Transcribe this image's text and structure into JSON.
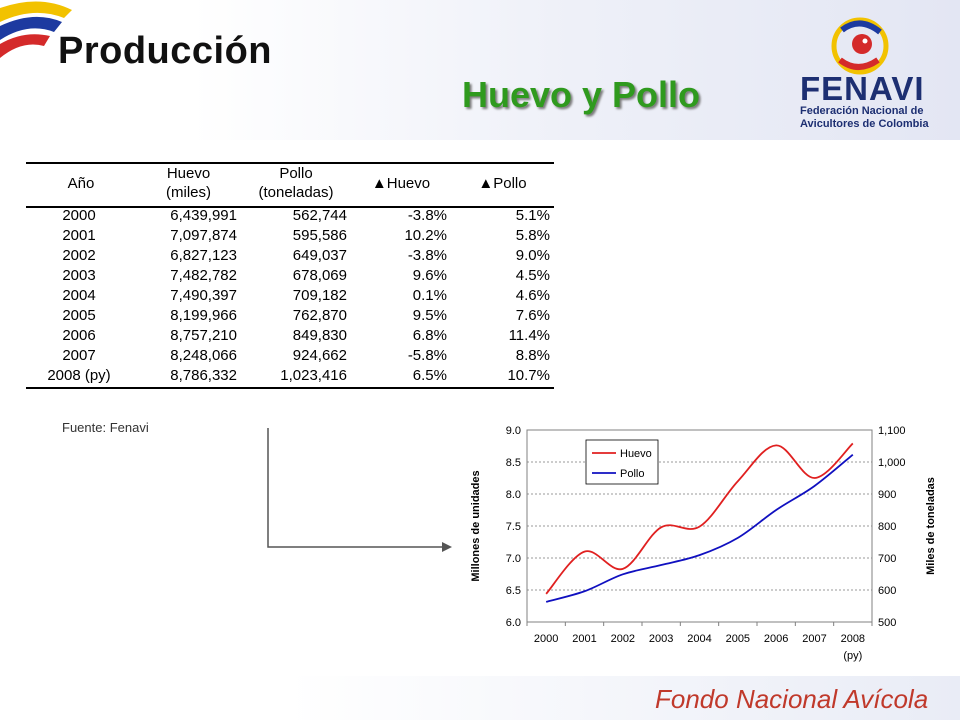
{
  "header": {
    "title": "Producción",
    "subtitle": "Huevo y Pollo"
  },
  "logo": {
    "name": "FENAVI",
    "line1": "Federación Nacional de",
    "line2": "Avicultores de Colombia"
  },
  "table": {
    "headers": [
      "Año",
      "Huevo\n(miles)",
      "Pollo\n(toneladas)",
      "▲Huevo",
      "▲Pollo"
    ],
    "rows": [
      [
        "2000",
        "6,439,991",
        "562,744",
        "-3.8%",
        "5.1%"
      ],
      [
        "2001",
        "7,097,874",
        "595,586",
        "10.2%",
        "5.8%"
      ],
      [
        "2002",
        "6,827,123",
        "649,037",
        "-3.8%",
        "9.0%"
      ],
      [
        "2003",
        "7,482,782",
        "678,069",
        "9.6%",
        "4.5%"
      ],
      [
        "2004",
        "7,490,397",
        "709,182",
        "0.1%",
        "4.6%"
      ],
      [
        "2005",
        "8,199,966",
        "762,870",
        "9.5%",
        "7.6%"
      ],
      [
        "2006",
        "8,757,210",
        "849,830",
        "6.8%",
        "11.4%"
      ],
      [
        "2007",
        "8,248,066",
        "924,662",
        "-5.8%",
        "8.8%"
      ],
      [
        "2008 (py)",
        "8,786,332",
        "1,023,416",
        "6.5%",
        "10.7%"
      ]
    ]
  },
  "source": "Fuente: Fenavi",
  "footer": "Fondo Nacional Avícola",
  "colors": {
    "huevo": "#e02020",
    "pollo": "#1010c0",
    "subtitle": "#2f9a1e",
    "logo": "#1d2f72"
  },
  "chart_data": {
    "type": "line",
    "x": [
      "2000",
      "2001",
      "2002",
      "2003",
      "2004",
      "2005",
      "2006",
      "2007",
      "2008"
    ],
    "x_tick_note": "(py)",
    "series": [
      {
        "name": "Huevo",
        "axis": "left",
        "values": [
          6.44,
          7.1,
          6.83,
          7.48,
          7.49,
          8.2,
          8.76,
          8.25,
          8.79
        ]
      },
      {
        "name": "Pollo",
        "axis": "right",
        "values": [
          563,
          596,
          649,
          678,
          709,
          763,
          850,
          925,
          1023
        ]
      }
    ],
    "ylabel_left": "Millones de unidades",
    "ylabel_right": "Miles de toneladas",
    "ylim_left": [
      6.0,
      9.0
    ],
    "yticks_left": [
      "6.0",
      "6.5",
      "7.0",
      "7.5",
      "8.0",
      "8.5",
      "9.0"
    ],
    "ylim_right": [
      500,
      1100
    ],
    "yticks_right": [
      "500",
      "600",
      "700",
      "800",
      "900",
      "1,000",
      "1,100"
    ],
    "grid": true,
    "legend": "top-left"
  }
}
